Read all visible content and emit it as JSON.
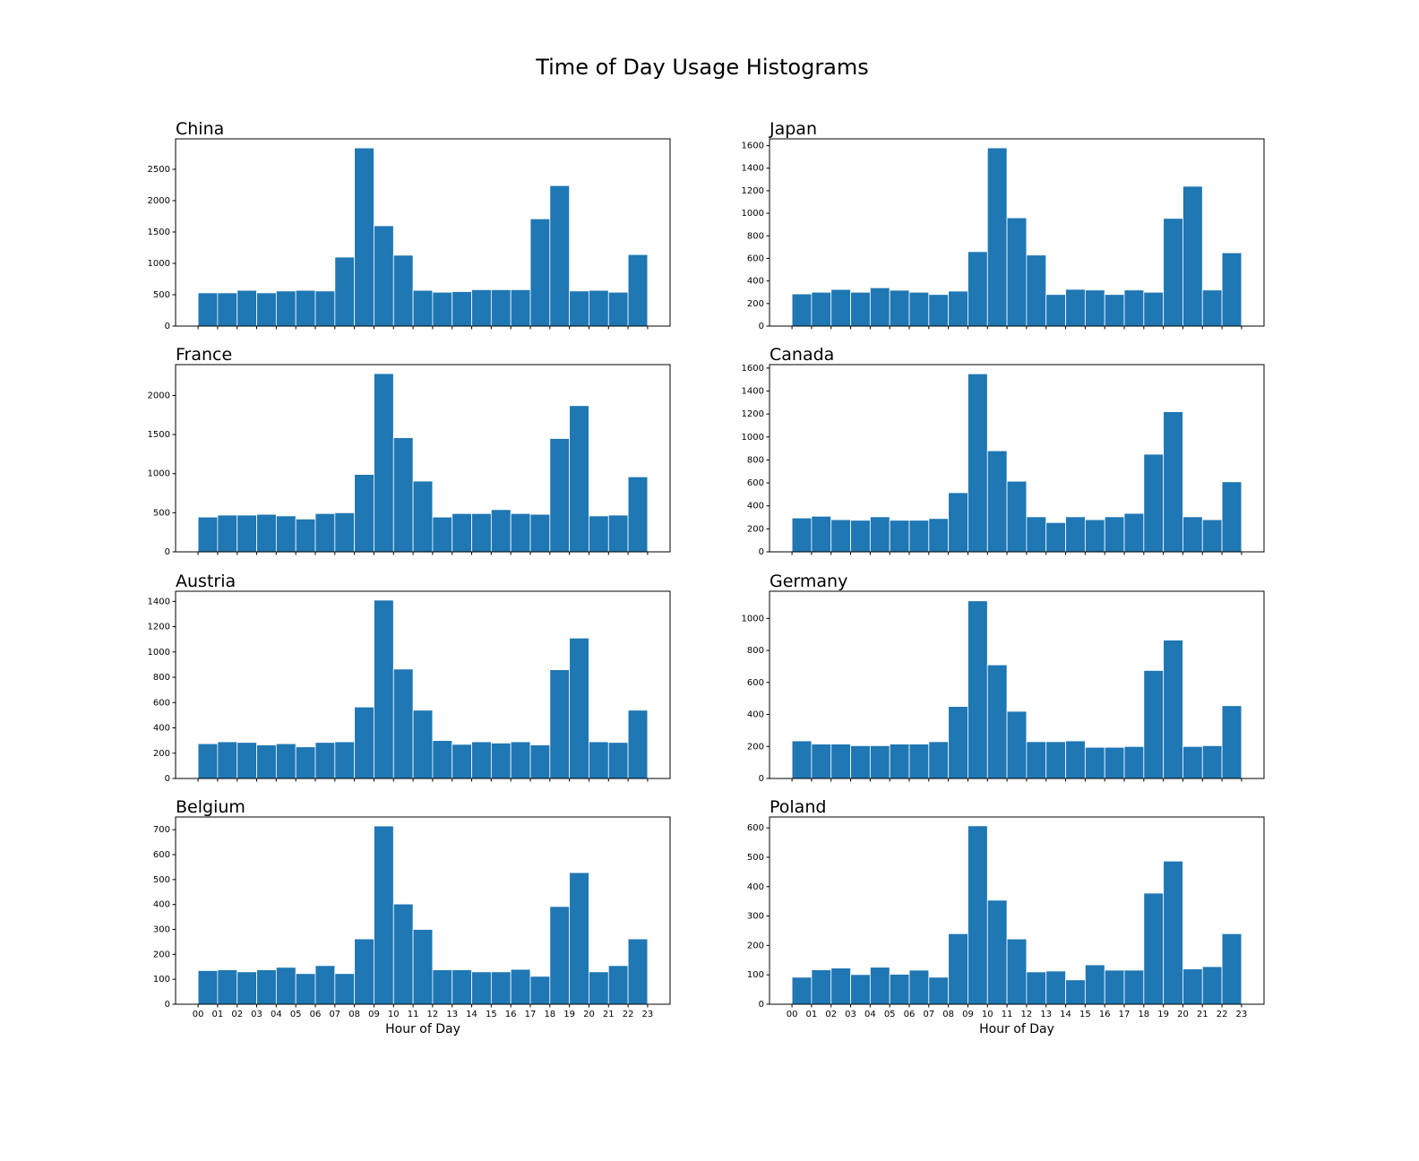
{
  "title": "Time of Day Usage Histograms",
  "chart_data": [
    {
      "type": "histogram",
      "title": "China",
      "color": "#1f77b4",
      "bins": [
        0,
        1,
        2,
        3,
        4,
        5,
        6,
        7,
        8,
        9,
        10,
        11,
        12,
        13,
        14,
        15,
        16,
        17,
        18,
        19,
        20,
        21,
        22,
        23
      ],
      "values": [
        530,
        530,
        570,
        530,
        560,
        570,
        560,
        1100,
        2840,
        1600,
        1130,
        570,
        540,
        550,
        580,
        580,
        580,
        1710,
        2240,
        560,
        570,
        540,
        1140
      ],
      "xlim": [
        -1.15,
        24.15
      ],
      "ylim": [
        0,
        2985
      ],
      "xticks": [
        0,
        1,
        2,
        3,
        4,
        5,
        6,
        7,
        8,
        9,
        10,
        11,
        12,
        13,
        14,
        15,
        16,
        17,
        18,
        19,
        20,
        21,
        22,
        23
      ],
      "yticks": [
        0,
        500,
        1000,
        1500,
        2000,
        2500
      ]
    },
    {
      "type": "histogram",
      "title": "Japan",
      "color": "#1f77b4",
      "bins": [
        0,
        1,
        2,
        3,
        4,
        5,
        6,
        7,
        8,
        9,
        10,
        11,
        12,
        13,
        14,
        15,
        16,
        17,
        18,
        19,
        20,
        21,
        22,
        23
      ],
      "values": [
        285,
        300,
        325,
        300,
        340,
        318,
        300,
        280,
        310,
        660,
        1580,
        960,
        630,
        280,
        326,
        320,
        280,
        320,
        300,
        955,
        1240,
        320,
        650
      ],
      "xlim": [
        -1.15,
        24.15
      ],
      "ylim": [
        0,
        1660
      ],
      "xticks": [
        0,
        1,
        2,
        3,
        4,
        5,
        6,
        7,
        8,
        9,
        10,
        11,
        12,
        13,
        14,
        15,
        16,
        17,
        18,
        19,
        20,
        21,
        22,
        23
      ],
      "yticks": [
        0,
        200,
        400,
        600,
        800,
        1000,
        1200,
        1400,
        1600
      ]
    },
    {
      "type": "histogram",
      "title": "France",
      "color": "#1f77b4",
      "bins": [
        0,
        1,
        2,
        3,
        4,
        5,
        6,
        7,
        8,
        9,
        10,
        11,
        12,
        13,
        14,
        15,
        16,
        17,
        18,
        19,
        20,
        21,
        22,
        23
      ],
      "values": [
        445,
        470,
        470,
        480,
        460,
        420,
        490,
        500,
        990,
        2280,
        1460,
        905,
        445,
        490,
        490,
        540,
        490,
        480,
        1450,
        1870,
        460,
        470,
        960
      ],
      "xlim": [
        -1.15,
        24.15
      ],
      "ylim": [
        0,
        2395
      ],
      "xticks": [
        0,
        1,
        2,
        3,
        4,
        5,
        6,
        7,
        8,
        9,
        10,
        11,
        12,
        13,
        14,
        15,
        16,
        17,
        18,
        19,
        20,
        21,
        22,
        23
      ],
      "yticks": [
        0,
        500,
        1000,
        1500,
        2000
      ]
    },
    {
      "type": "histogram",
      "title": "Canada",
      "color": "#1f77b4",
      "bins": [
        0,
        1,
        2,
        3,
        4,
        5,
        6,
        7,
        8,
        9,
        10,
        11,
        12,
        13,
        14,
        15,
        16,
        17,
        18,
        19,
        20,
        21,
        22,
        23
      ],
      "values": [
        295,
        310,
        280,
        275,
        305,
        275,
        275,
        290,
        515,
        1550,
        880,
        615,
        305,
        255,
        305,
        280,
        305,
        335,
        850,
        1220,
        305,
        280,
        610
      ],
      "xlim": [
        -1.15,
        24.15
      ],
      "ylim": [
        0,
        1630
      ],
      "xticks": [
        0,
        1,
        2,
        3,
        4,
        5,
        6,
        7,
        8,
        9,
        10,
        11,
        12,
        13,
        14,
        15,
        16,
        17,
        18,
        19,
        20,
        21,
        22,
        23
      ],
      "yticks": [
        0,
        200,
        400,
        600,
        800,
        1000,
        1200,
        1400,
        1600
      ]
    },
    {
      "type": "histogram",
      "title": "Austria",
      "color": "#1f77b4",
      "bins": [
        0,
        1,
        2,
        3,
        4,
        5,
        6,
        7,
        8,
        9,
        10,
        11,
        12,
        13,
        14,
        15,
        16,
        17,
        18,
        19,
        20,
        21,
        22,
        23
      ],
      "values": [
        275,
        290,
        285,
        265,
        275,
        250,
        285,
        290,
        565,
        1410,
        865,
        540,
        300,
        270,
        290,
        280,
        290,
        265,
        860,
        1110,
        290,
        285,
        540
      ],
      "xlim": [
        -1.15,
        24.15
      ],
      "ylim": [
        0,
        1480
      ],
      "xticks": [
        0,
        1,
        2,
        3,
        4,
        5,
        6,
        7,
        8,
        9,
        10,
        11,
        12,
        13,
        14,
        15,
        16,
        17,
        18,
        19,
        20,
        21,
        22,
        23
      ],
      "yticks": [
        0,
        200,
        400,
        600,
        800,
        1000,
        1200,
        1400
      ]
    },
    {
      "type": "histogram",
      "title": "Germany",
      "color": "#1f77b4",
      "bins": [
        0,
        1,
        2,
        3,
        4,
        5,
        6,
        7,
        8,
        9,
        10,
        11,
        12,
        13,
        14,
        15,
        16,
        17,
        18,
        19,
        20,
        21,
        22,
        23
      ],
      "values": [
        235,
        215,
        215,
        205,
        205,
        215,
        215,
        230,
        450,
        1110,
        710,
        420,
        230,
        230,
        235,
        195,
        195,
        200,
        675,
        865,
        200,
        205,
        455
      ],
      "xlim": [
        -1.15,
        24.15
      ],
      "ylim": [
        0,
        1170
      ],
      "xticks": [
        0,
        1,
        2,
        3,
        4,
        5,
        6,
        7,
        8,
        9,
        10,
        11,
        12,
        13,
        14,
        15,
        16,
        17,
        18,
        19,
        20,
        21,
        22,
        23
      ],
      "yticks": [
        0,
        200,
        400,
        600,
        800,
        1000
      ]
    },
    {
      "type": "histogram",
      "title": "Belgium",
      "color": "#1f77b4",
      "xlabel": "Hour of Day",
      "bins": [
        0,
        1,
        2,
        3,
        4,
        5,
        6,
        7,
        8,
        9,
        10,
        11,
        12,
        13,
        14,
        15,
        16,
        17,
        18,
        19,
        20,
        21,
        22,
        23
      ],
      "values": [
        135,
        138,
        130,
        138,
        148,
        123,
        155,
        123,
        262,
        715,
        402,
        300,
        138,
        138,
        130,
        130,
        140,
        112,
        392,
        528,
        130,
        155,
        262
      ],
      "xlim": [
        -1.15,
        24.15
      ],
      "ylim": [
        0,
        751
      ],
      "xticks": [
        {
          "value": 0,
          "label": "00"
        },
        {
          "value": 1,
          "label": "01"
        },
        {
          "value": 2,
          "label": "02"
        },
        {
          "value": 3,
          "label": "03"
        },
        {
          "value": 4,
          "label": "04"
        },
        {
          "value": 5,
          "label": "05"
        },
        {
          "value": 6,
          "label": "06"
        },
        {
          "value": 7,
          "label": "07"
        },
        {
          "value": 8,
          "label": "08"
        },
        {
          "value": 9,
          "label": "09"
        },
        {
          "value": 10,
          "label": "10"
        },
        {
          "value": 11,
          "label": "11"
        },
        {
          "value": 12,
          "label": "12"
        },
        {
          "value": 13,
          "label": "13"
        },
        {
          "value": 14,
          "label": "14"
        },
        {
          "value": 15,
          "label": "15"
        },
        {
          "value": 16,
          "label": "16"
        },
        {
          "value": 17,
          "label": "17"
        },
        {
          "value": 18,
          "label": "18"
        },
        {
          "value": 19,
          "label": "19"
        },
        {
          "value": 20,
          "label": "20"
        },
        {
          "value": 21,
          "label": "21"
        },
        {
          "value": 22,
          "label": "22"
        },
        {
          "value": 23,
          "label": "23"
        }
      ],
      "yticks": [
        0,
        100,
        200,
        300,
        400,
        500,
        600,
        700
      ]
    },
    {
      "type": "histogram",
      "title": "Poland",
      "color": "#1f77b4",
      "xlabel": "Hour of Day",
      "bins": [
        0,
        1,
        2,
        3,
        4,
        5,
        6,
        7,
        8,
        9,
        10,
        11,
        12,
        13,
        14,
        15,
        16,
        17,
        18,
        19,
        20,
        21,
        22,
        23
      ],
      "values": [
        92,
        117,
        123,
        101,
        126,
        102,
        116,
        92,
        240,
        607,
        354,
        222,
        110,
        113,
        83,
        134,
        116,
        116,
        378,
        487,
        120,
        128,
        240
      ],
      "xlim": [
        -1.15,
        24.15
      ],
      "ylim": [
        0,
        637
      ],
      "xticks": [
        {
          "value": 0,
          "label": "00"
        },
        {
          "value": 1,
          "label": "01"
        },
        {
          "value": 2,
          "label": "02"
        },
        {
          "value": 3,
          "label": "03"
        },
        {
          "value": 4,
          "label": "04"
        },
        {
          "value": 5,
          "label": "05"
        },
        {
          "value": 6,
          "label": "06"
        },
        {
          "value": 7,
          "label": "07"
        },
        {
          "value": 8,
          "label": "08"
        },
        {
          "value": 9,
          "label": "09"
        },
        {
          "value": 10,
          "label": "10"
        },
        {
          "value": 11,
          "label": "11"
        },
        {
          "value": 12,
          "label": "12"
        },
        {
          "value": 13,
          "label": "13"
        },
        {
          "value": 14,
          "label": "14"
        },
        {
          "value": 15,
          "label": "15"
        },
        {
          "value": 16,
          "label": "16"
        },
        {
          "value": 17,
          "label": "17"
        },
        {
          "value": 18,
          "label": "18"
        },
        {
          "value": 19,
          "label": "19"
        },
        {
          "value": 20,
          "label": "20"
        },
        {
          "value": 21,
          "label": "21"
        },
        {
          "value": 22,
          "label": "22"
        },
        {
          "value": 23,
          "label": "23"
        }
      ],
      "yticks": [
        0,
        100,
        200,
        300,
        400,
        500,
        600
      ]
    }
  ]
}
